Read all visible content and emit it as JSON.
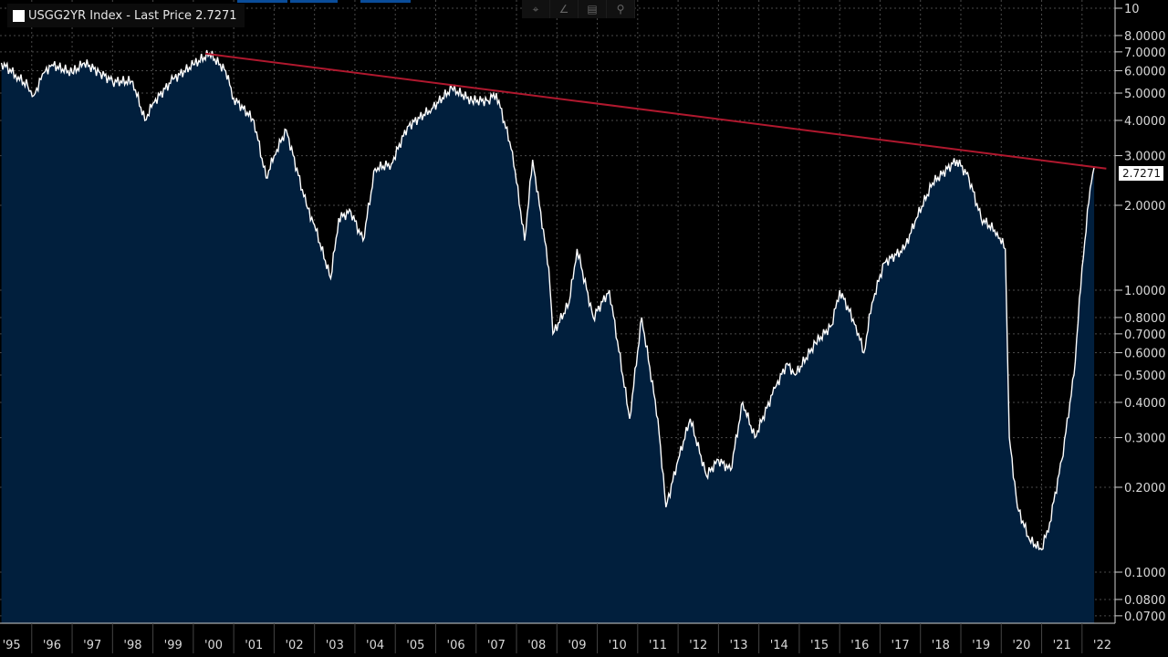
{
  "legend": {
    "label": "USGG2YR Index - Last Price 2.7271"
  },
  "toolbar": {
    "icons": [
      "crosshair-icon",
      "draw-line-icon",
      "list-icon",
      "zoom-icon"
    ],
    "glyphs": [
      "⌖",
      "∠",
      "▤",
      "⚲"
    ]
  },
  "last_price_label": "2.7271",
  "colors": {
    "area": "#011f3d",
    "line": "#ffffff",
    "trend": "#b0182e",
    "grid": "#4a4a4a"
  },
  "chart_data": {
    "type": "area",
    "title": "USGG2YR Index - Last Price 2.7271",
    "yscale": "log",
    "ylim": [
      0.065,
      11
    ],
    "xlim": [
      1995.0,
      2022.4
    ],
    "yticks": [
      {
        "v": 10,
        "label": "10"
      },
      {
        "v": 8,
        "label": "8.0000"
      },
      {
        "v": 7,
        "label": "7.0000"
      },
      {
        "v": 6,
        "label": "6.0000"
      },
      {
        "v": 5,
        "label": "5.0000"
      },
      {
        "v": 4,
        "label": "4.0000"
      },
      {
        "v": 3,
        "label": "3.0000"
      },
      {
        "v": 2,
        "label": "2.0000"
      },
      {
        "v": 1,
        "label": "1.0000"
      },
      {
        "v": 0.8,
        "label": "0.8000"
      },
      {
        "v": 0.7,
        "label": "0.7000"
      },
      {
        "v": 0.6,
        "label": "0.6000"
      },
      {
        "v": 0.5,
        "label": "0.5000"
      },
      {
        "v": 0.4,
        "label": "0.4000"
      },
      {
        "v": 0.3,
        "label": "0.3000"
      },
      {
        "v": 0.2,
        "label": "0.2000"
      },
      {
        "v": 0.1,
        "label": "0.1000"
      },
      {
        "v": 0.08,
        "label": "0.0800"
      },
      {
        "v": 0.07,
        "label": "0.0700"
      }
    ],
    "xticks": [
      "'95",
      "'96",
      "'97",
      "'98",
      "'99",
      "'00",
      "'01",
      "'02",
      "'03",
      "'04",
      "'05",
      "'06",
      "'07",
      "'08",
      "'09",
      "'10",
      "'11",
      "'12",
      "'13",
      "'14",
      "'15",
      "'16",
      "'17",
      "'18",
      "'19",
      "'20",
      "'21",
      "'22"
    ],
    "series": [
      {
        "name": "USGG2YR Index",
        "x": [
          1995.25,
          1995.6,
          1995.9,
          1996.05,
          1996.3,
          1996.5,
          1997.0,
          1997.3,
          1997.7,
          1998.0,
          1998.5,
          1998.8,
          1999.0,
          1999.5,
          2000.0,
          2000.4,
          2000.8,
          2001.0,
          2001.5,
          2001.8,
          2002.0,
          2002.3,
          2002.8,
          2003.0,
          2003.4,
          2003.6,
          2003.9,
          2004.2,
          2004.5,
          2004.9,
          2005.3,
          2005.9,
          2006.4,
          2006.9,
          2007.3,
          2007.5,
          2007.9,
          2008.2,
          2008.4,
          2008.8,
          2008.9,
          2009.3,
          2009.5,
          2009.9,
          2010.3,
          2010.8,
          2011.1,
          2011.5,
          2011.7,
          2012.0,
          2012.3,
          2012.7,
          2013.0,
          2013.3,
          2013.6,
          2013.9,
          2014.4,
          2014.7,
          2014.9,
          2015.4,
          2015.8,
          2016.0,
          2016.4,
          2016.6,
          2016.8,
          2017.1,
          2017.6,
          2017.9,
          2018.3,
          2018.9,
          2019.2,
          2019.5,
          2019.9,
          2020.1,
          2020.2,
          2020.4,
          2020.7,
          2021.0,
          2021.2,
          2021.5,
          2021.8,
          2022.0,
          2022.2,
          2022.3
        ],
        "values": [
          6.4,
          5.8,
          5.3,
          4.9,
          5.9,
          6.3,
          5.9,
          6.4,
          5.9,
          5.5,
          5.5,
          4.0,
          4.6,
          5.6,
          6.3,
          6.9,
          6.0,
          4.8,
          4.0,
          2.5,
          3.0,
          3.7,
          2.0,
          1.7,
          1.1,
          1.8,
          1.9,
          1.5,
          2.7,
          2.8,
          3.8,
          4.4,
          5.2,
          4.7,
          4.7,
          5.0,
          3.1,
          1.5,
          2.9,
          1.2,
          0.7,
          0.9,
          1.4,
          0.8,
          1.0,
          0.35,
          0.8,
          0.35,
          0.17,
          0.25,
          0.35,
          0.22,
          0.25,
          0.23,
          0.4,
          0.3,
          0.45,
          0.55,
          0.5,
          0.65,
          0.75,
          1.0,
          0.75,
          0.6,
          0.9,
          1.25,
          1.4,
          1.8,
          2.4,
          2.9,
          2.5,
          1.8,
          1.6,
          1.4,
          0.3,
          0.17,
          0.13,
          0.12,
          0.15,
          0.25,
          0.5,
          1.2,
          2.3,
          2.7271
        ]
      }
    ],
    "trendline": {
      "from": [
        2000.3,
        6.9
      ],
      "to": [
        2022.6,
        2.7
      ]
    },
    "last_value": 2.7271,
    "grid": true
  }
}
